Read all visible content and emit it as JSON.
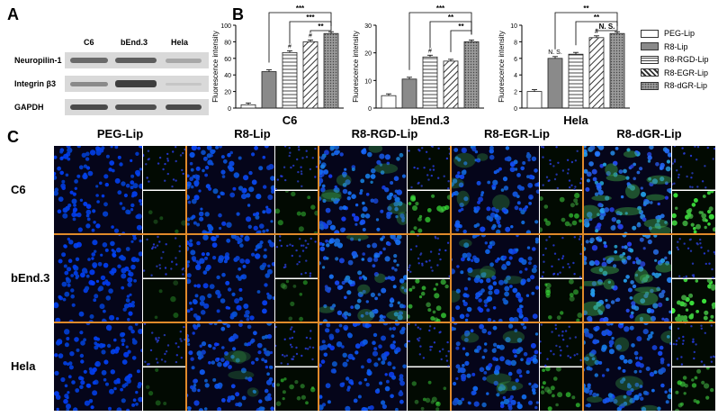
{
  "panels": {
    "a": "A",
    "b": "B",
    "c": "C"
  },
  "western_blot": {
    "columns": [
      "C6",
      "bEnd.3",
      "Hela"
    ],
    "rows": [
      "Neuropilin-1",
      "Integrin β3",
      "GAPDH"
    ]
  },
  "legend": [
    {
      "name": "PEG-Lip",
      "pattern": "white"
    },
    {
      "name": "R8-Lip",
      "pattern": "dark-gray"
    },
    {
      "name": "R8-RGD-Lip",
      "pattern": "horizontal-stripes"
    },
    {
      "name": "R8-EGR-Lip",
      "pattern": "diagonal-stripes"
    },
    {
      "name": "R8-dGR-Lip",
      "pattern": "dotted"
    }
  ],
  "chart_data": [
    {
      "type": "bar",
      "title": "C6",
      "ylabel": "Fluorescence intensity",
      "ylim": [
        0,
        100
      ],
      "yticks": [
        0,
        20,
        40,
        60,
        80,
        100
      ],
      "values": [
        4,
        44,
        67,
        80,
        90
      ],
      "annotations": {
        "above_bars": [
          "",
          "",
          "#",
          "#",
          ""
        ],
        "brackets": [
          "***",
          "***",
          "**"
        ]
      }
    },
    {
      "type": "bar",
      "title": "bEnd.3",
      "ylabel": "Fluorescence intensity",
      "ylim": [
        0,
        30
      ],
      "yticks": [
        0,
        10,
        20,
        30
      ],
      "values": [
        4.5,
        10.5,
        18.5,
        17,
        24
      ],
      "annotations": {
        "above_bars": [
          "",
          "",
          "#",
          "",
          ""
        ],
        "brackets": [
          "***",
          "**",
          "**"
        ]
      }
    },
    {
      "type": "bar",
      "title": "Hela",
      "ylabel": "Fluorescence intensity",
      "ylim": [
        0,
        10
      ],
      "yticks": [
        0,
        2,
        4,
        6,
        8,
        10
      ],
      "values": [
        2,
        6,
        6.5,
        8.5,
        9
      ],
      "annotations": {
        "above_bars": [
          "",
          "N. S.",
          "",
          "#",
          ""
        ],
        "brackets": [
          "**",
          "**",
          "N. S."
        ]
      }
    }
  ],
  "microscopy": {
    "columns": [
      "PEG-Lip",
      "R8-Lip",
      "R8-RGD-Lip",
      "R8-EGR-Lip",
      "R8-dGR-Lip"
    ],
    "rows": [
      "C6",
      "bEnd.3",
      "Hela"
    ],
    "green_intensity": [
      [
        0.05,
        0.25,
        0.55,
        0.45,
        0.9
      ],
      [
        0.05,
        0.2,
        0.6,
        0.4,
        0.95
      ],
      [
        0.05,
        0.35,
        0.3,
        0.45,
        0.55
      ]
    ]
  }
}
